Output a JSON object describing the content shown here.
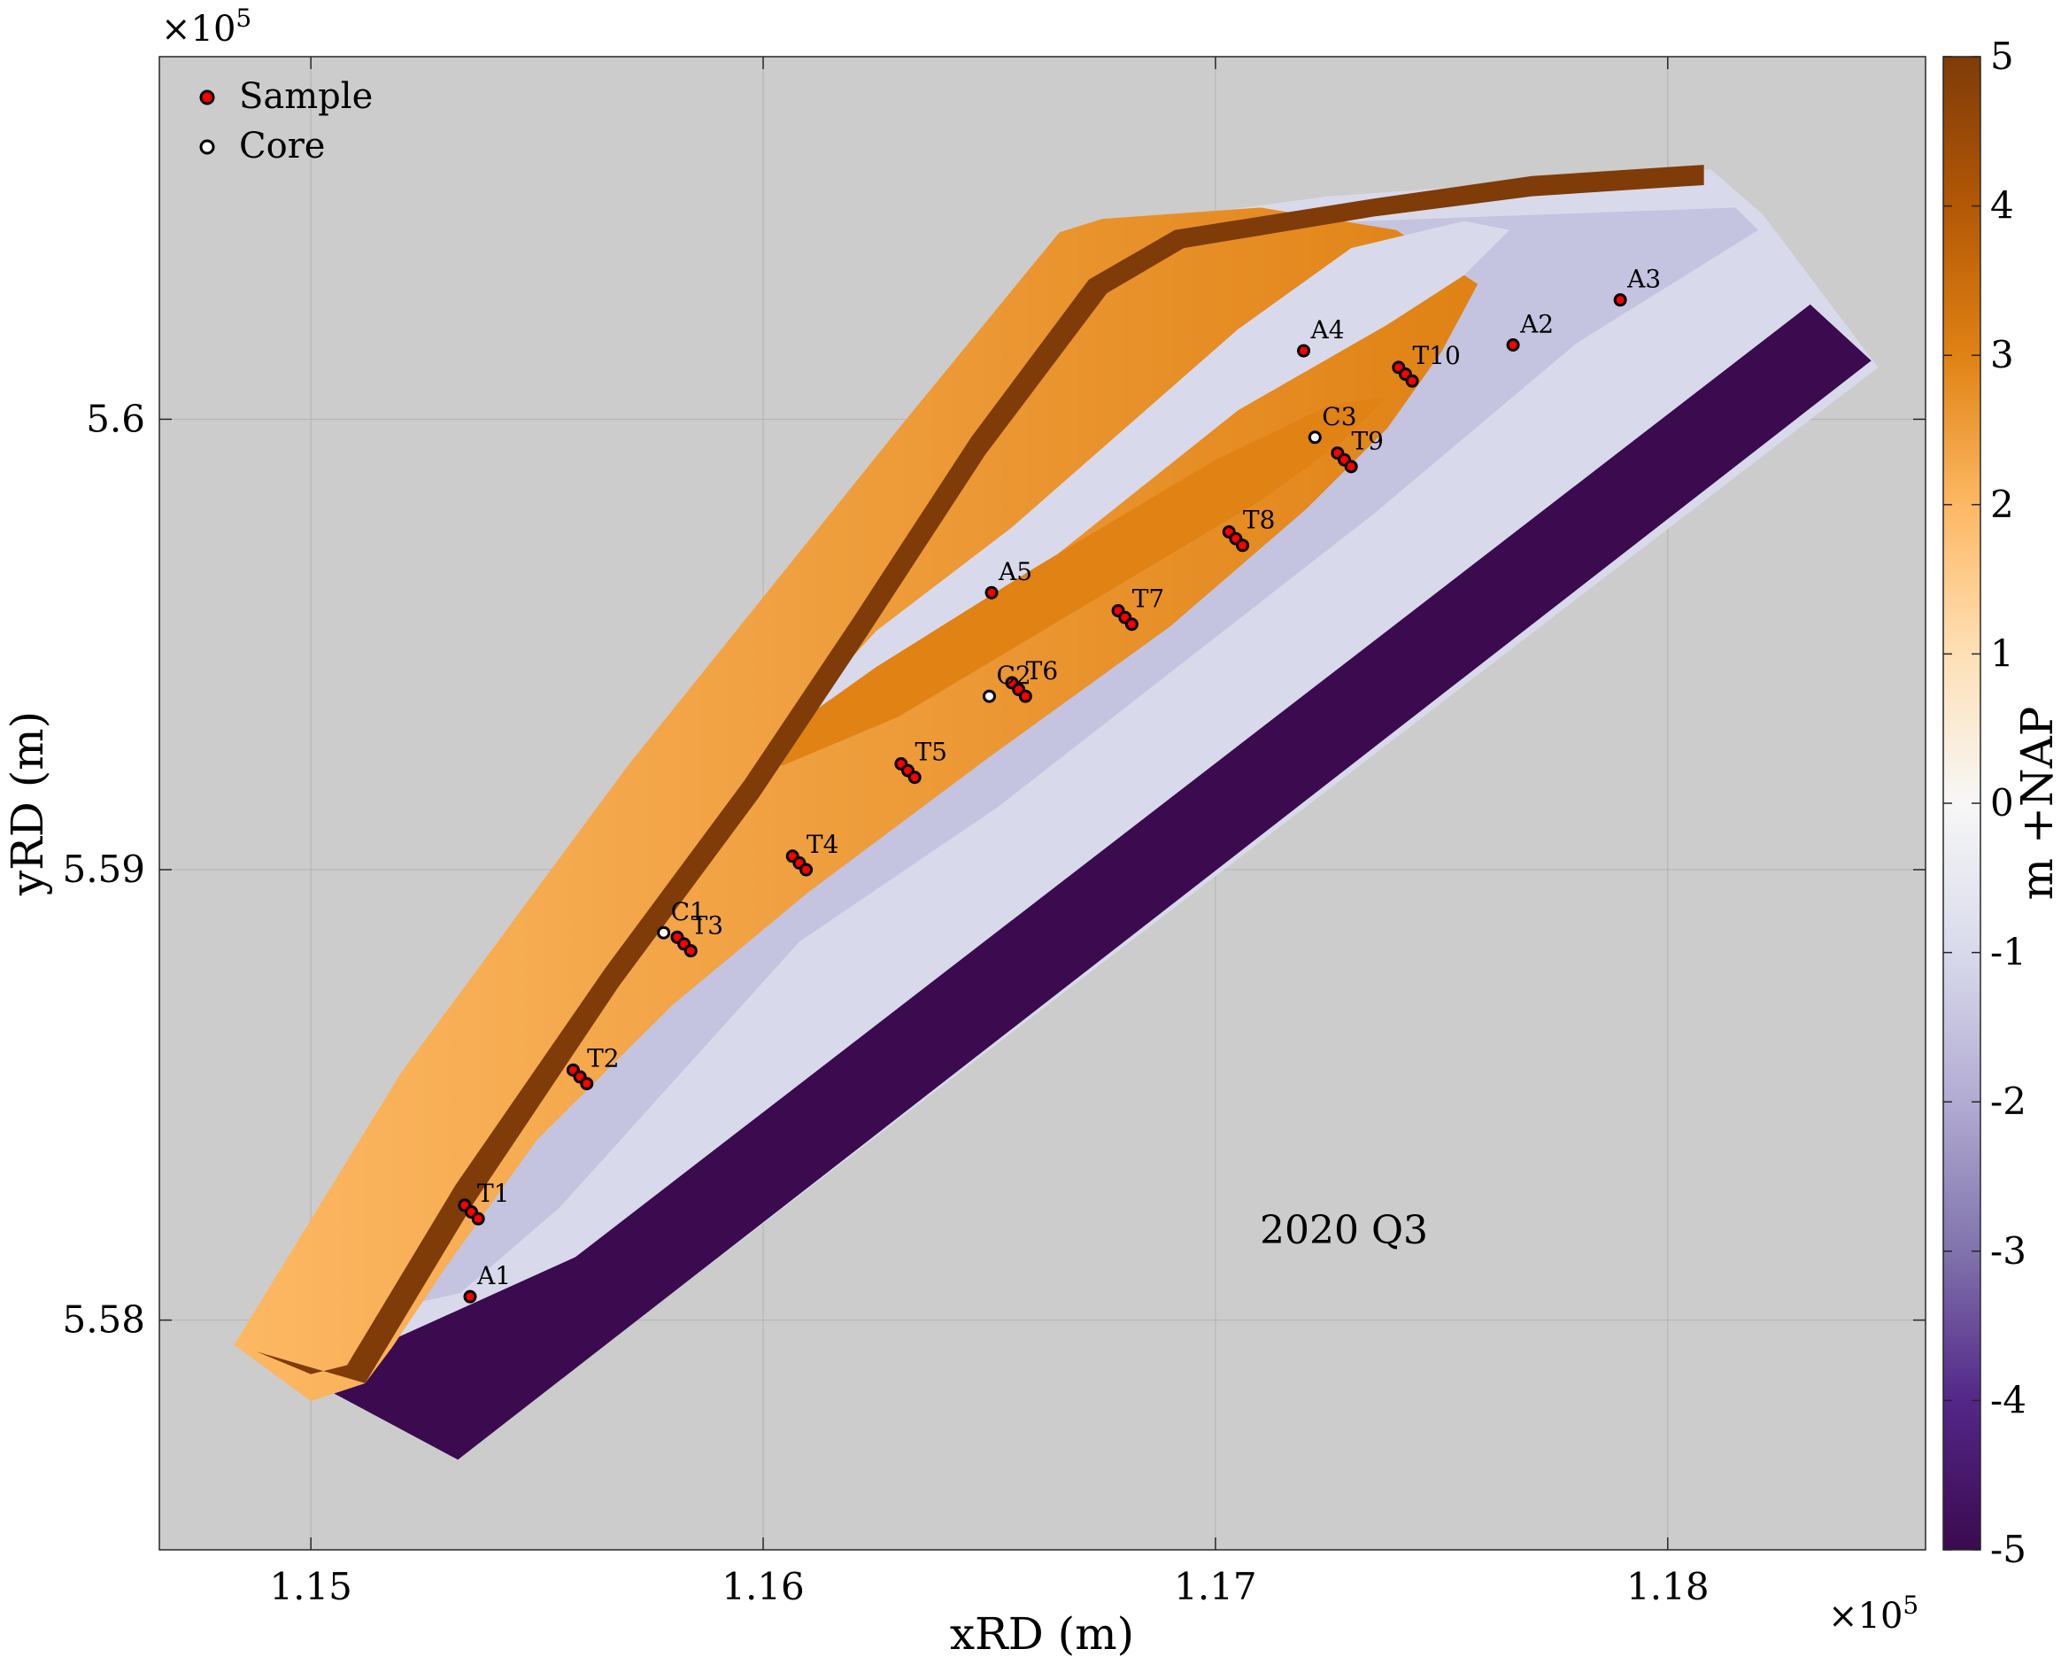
{
  "chart_data": {
    "type": "heatmap",
    "title": "",
    "xlabel": "xRD (m)",
    "ylabel": "yRD (m)",
    "x_multiplier": "×10^5",
    "y_multiplier": "×10^5",
    "xlim": [
      114665,
      118570
    ],
    "ylim": [
      557490,
      560805
    ],
    "xticks": [
      115000,
      116000,
      117000,
      118000
    ],
    "xtick_labels": [
      "1.15",
      "1.16",
      "1.17",
      "1.18"
    ],
    "yticks": [
      558000,
      559000,
      560000
    ],
    "ytick_labels": [
      "5.58",
      "5.59",
      "5.6"
    ],
    "grid": true,
    "background_color": "#cccccc",
    "colorbar": {
      "label": "m +NAP",
      "range": [
        -5,
        5
      ],
      "ticks": [
        5,
        4,
        3,
        2,
        1,
        0,
        -1,
        -2,
        -3,
        -4,
        -5
      ],
      "tick_labels": [
        "5",
        "4",
        "3",
        "2",
        "1",
        "0",
        "-1",
        "-2",
        "-3",
        "-4",
        "-5"
      ],
      "colormap": [
        "#3b0a4f",
        "#532788",
        "#8073ac",
        "#b2abd2",
        "#d8daeb",
        "#f7f7f7",
        "#fee0b6",
        "#fdb863",
        "#e08214",
        "#b35806",
        "#7f3b08"
      ]
    },
    "annotation": "2020 Q3",
    "legend": {
      "placement": "top-left",
      "entries": [
        {
          "name": "Sample",
          "color": "#ff0000"
        },
        {
          "name": "Core",
          "color": "#ffffff"
        }
      ]
    },
    "sample_labels": [
      {
        "label": "A1",
        "x": 115352,
        "y": 558052
      },
      {
        "label": "A2",
        "x": 117658,
        "y": 560165
      },
      {
        "label": "A3",
        "x": 117895,
        "y": 560265
      },
      {
        "label": "A4",
        "x": 117195,
        "y": 560152
      },
      {
        "label": "A5",
        "x": 116505,
        "y": 559615
      },
      {
        "label": "T1",
        "x": 115352,
        "y": 558235
      },
      {
        "label": "T2",
        "x": 115595,
        "y": 558535
      },
      {
        "label": "T3",
        "x": 115825,
        "y": 558830
      },
      {
        "label": "T4",
        "x": 116080,
        "y": 559010
      },
      {
        "label": "T5",
        "x": 116320,
        "y": 559215
      },
      {
        "label": "T6",
        "x": 116565,
        "y": 559395
      },
      {
        "label": "T7",
        "x": 116800,
        "y": 559555
      },
      {
        "label": "T8",
        "x": 117045,
        "y": 559730
      },
      {
        "label": "T9",
        "x": 117285,
        "y": 559905
      },
      {
        "label": "T10",
        "x": 117420,
        "y": 560095
      }
    ],
    "core_labels": [
      {
        "label": "C1",
        "x": 115780,
        "y": 558860
      },
      {
        "label": "C2",
        "x": 116500,
        "y": 559385
      },
      {
        "label": "C3",
        "x": 117220,
        "y": 559960
      }
    ],
    "transects": [
      {
        "name": "T1",
        "points": [
          [
            115340,
            558255
          ],
          [
            115355,
            558240
          ],
          [
            115370,
            558225
          ]
        ]
      },
      {
        "name": "T2",
        "points": [
          [
            115580,
            558555
          ],
          [
            115595,
            558540
          ],
          [
            115610,
            558525
          ]
        ]
      },
      {
        "name": "T3",
        "points": [
          [
            115810,
            558850
          ],
          [
            115825,
            558835
          ],
          [
            115840,
            558820
          ]
        ]
      },
      {
        "name": "T4",
        "points": [
          [
            116065,
            559030
          ],
          [
            116080,
            559015
          ],
          [
            116095,
            559000
          ]
        ]
      },
      {
        "name": "T5",
        "points": [
          [
            116305,
            559235
          ],
          [
            116320,
            559220
          ],
          [
            116335,
            559205
          ]
        ]
      },
      {
        "name": "T6",
        "points": [
          [
            116550,
            559415
          ],
          [
            116565,
            559400
          ],
          [
            116580,
            559385
          ]
        ]
      },
      {
        "name": "T7",
        "points": [
          [
            116785,
            559575
          ],
          [
            116800,
            559560
          ],
          [
            116815,
            559545
          ]
        ]
      },
      {
        "name": "T8",
        "points": [
          [
            117030,
            559750
          ],
          [
            117045,
            559735
          ],
          [
            117060,
            559720
          ]
        ]
      },
      {
        "name": "T9",
        "points": [
          [
            117270,
            559925
          ],
          [
            117285,
            559910
          ],
          [
            117300,
            559895
          ]
        ]
      },
      {
        "name": "T10",
        "points": [
          [
            117405,
            560115
          ],
          [
            117420,
            560100
          ],
          [
            117435,
            560085
          ]
        ]
      }
    ],
    "single_samples": [
      {
        "name": "A1",
        "point": [
          115352,
          558052
        ]
      },
      {
        "name": "A2",
        "point": [
          117658,
          560165
        ]
      },
      {
        "name": "A3",
        "point": [
          117895,
          560265
        ]
      },
      {
        "name": "A4",
        "point": [
          117195,
          560152
        ]
      },
      {
        "name": "A5",
        "point": [
          116505,
          559615
        ]
      }
    ],
    "cores": [
      {
        "name": "C1",
        "point": [
          115780,
          558860
        ]
      },
      {
        "name": "C2",
        "point": [
          116500,
          559385
        ]
      },
      {
        "name": "C3",
        "point": [
          117220,
          559960
        ]
      }
    ],
    "terrain": {
      "deep_sea_value": -5,
      "nearshore_value": -1,
      "beach_value": 2,
      "ridge_value": 2.8,
      "dike_value": 4.8,
      "deep_water": [
        [
          114990,
          557870
        ],
        [
          115325,
          557690
        ],
        [
          118450,
          560130
        ],
        [
          118315,
          560255
        ],
        [
          115585,
          558140
        ]
      ],
      "domain_outline": [
        [
          114830,
          557945
        ],
        [
          115000,
          557820
        ],
        [
          115120,
          557860
        ],
        [
          115320,
          557690
        ],
        [
          118465,
          560115
        ],
        [
          118210,
          560455
        ],
        [
          118095,
          560555
        ],
        [
          117250,
          560495
        ],
        [
          116655,
          560415
        ],
        [
          114830,
          557945
        ]
      ],
      "nearshore": [
        [
          115000,
          557820
        ],
        [
          115120,
          557860
        ],
        [
          115150,
          558020
        ],
        [
          115330,
          558060
        ],
        [
          115550,
          558250
        ],
        [
          116080,
          558840
        ],
        [
          116520,
          559140
        ],
        [
          117350,
          559790
        ],
        [
          117800,
          560170
        ],
        [
          118200,
          560420
        ],
        [
          118150,
          560470
        ],
        [
          117600,
          560450
        ],
        [
          116655,
          560415
        ],
        [
          114830,
          557945
        ]
      ],
      "beach": [
        [
          114830,
          557945
        ],
        [
          115000,
          557820
        ],
        [
          115120,
          557860
        ],
        [
          115180,
          557940
        ],
        [
          115300,
          558120
        ],
        [
          115500,
          558400
        ],
        [
          115800,
          558700
        ],
        [
          116100,
          558950
        ],
        [
          116500,
          559250
        ],
        [
          116900,
          559540
        ],
        [
          117200,
          559800
        ],
        [
          117380,
          559980
        ],
        [
          117500,
          560150
        ],
        [
          117580,
          560300
        ],
        [
          117400,
          560420
        ],
        [
          117100,
          560470
        ],
        [
          116750,
          560445
        ],
        [
          116655,
          560415
        ],
        [
          116300,
          559980
        ],
        [
          115700,
          559230
        ],
        [
          115200,
          558550
        ],
        [
          114830,
          557945
        ]
      ],
      "tidal_flat": [
        [
          116040,
          559230
        ],
        [
          116400,
          559500
        ],
        [
          116750,
          559780
        ],
        [
          117050,
          560020
        ],
        [
          117380,
          560210
        ],
        [
          117550,
          560320
        ],
        [
          117650,
          560420
        ],
        [
          117550,
          560440
        ],
        [
          117300,
          560380
        ],
        [
          117050,
          560200
        ],
        [
          116800,
          559980
        ],
        [
          116550,
          559760
        ],
        [
          116250,
          559530
        ],
        [
          116040,
          559300
        ]
      ],
      "ridge": [
        [
          116040,
          559230
        ],
        [
          116300,
          559340
        ],
        [
          116700,
          559580
        ],
        [
          117100,
          559820
        ],
        [
          117280,
          559950
        ],
        [
          117380,
          560050
        ],
        [
          117250,
          560030
        ],
        [
          117000,
          559910
        ],
        [
          116600,
          559670
        ],
        [
          116250,
          559450
        ],
        [
          116040,
          559300
        ]
      ],
      "dike": [
        [
          114880,
          557930
        ],
        [
          115000,
          557880
        ],
        [
          115080,
          557900
        ],
        [
          115320,
          558300
        ],
        [
          115650,
          558780
        ],
        [
          115960,
          559200
        ],
        [
          116200,
          559560
        ],
        [
          116460,
          559960
        ],
        [
          116720,
          560310
        ],
        [
          116910,
          560420
        ],
        [
          117350,
          560490
        ],
        [
          117700,
          560540
        ],
        [
          118080,
          560565
        ],
        [
          118080,
          560520
        ],
        [
          117700,
          560495
        ],
        [
          117350,
          560450
        ],
        [
          116930,
          560380
        ],
        [
          116760,
          560280
        ],
        [
          116490,
          559920
        ],
        [
          116230,
          559520
        ],
        [
          115990,
          559160
        ],
        [
          115680,
          558740
        ],
        [
          115360,
          558260
        ],
        [
          115120,
          557860
        ]
      ]
    }
  }
}
